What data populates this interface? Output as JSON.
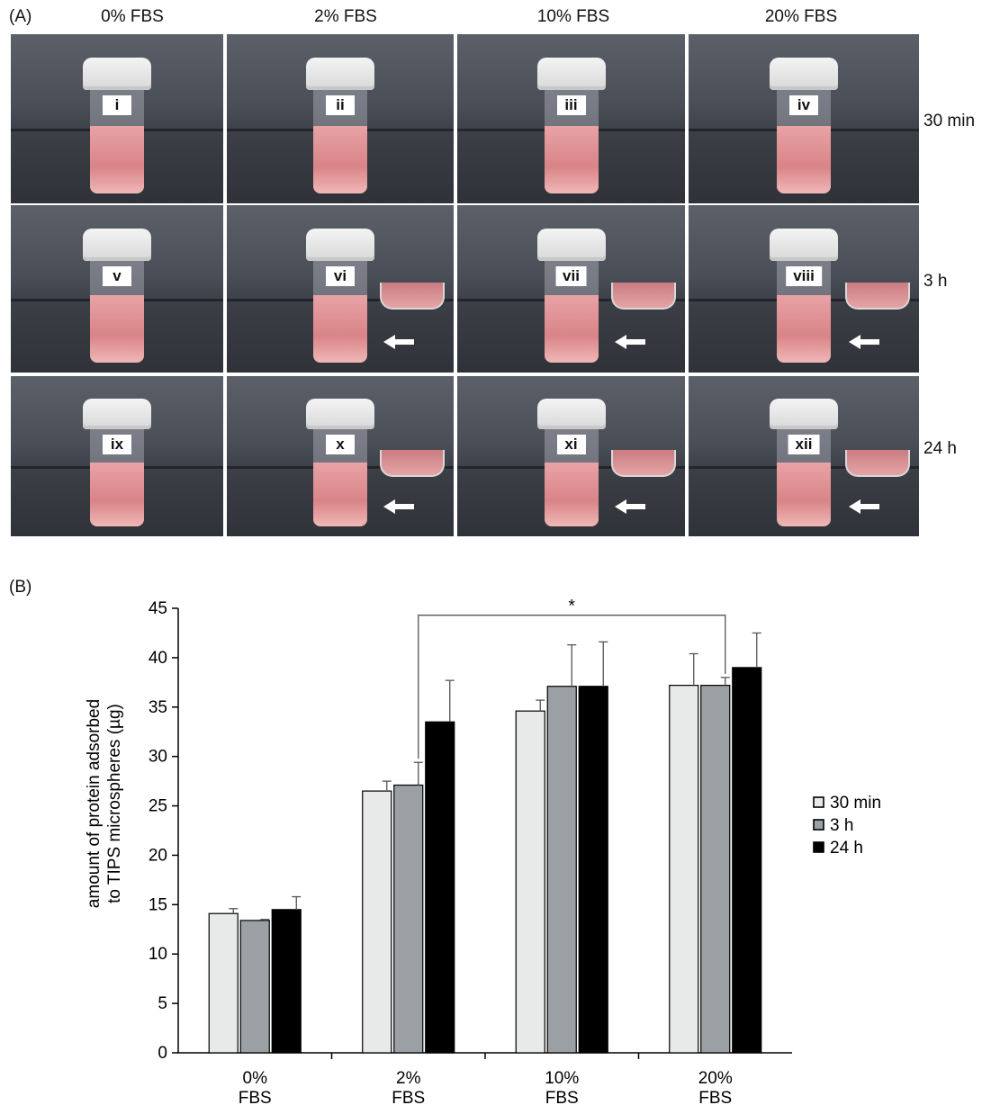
{
  "panel_a": {
    "label": "(A)",
    "columns": [
      "0% FBS",
      "2% FBS",
      "10% FBS",
      "20% FBS"
    ],
    "rows": [
      {
        "label": "30 min",
        "vials": [
          "i",
          "ii",
          "iii",
          "iv"
        ],
        "inset": [
          false,
          false,
          false,
          false
        ]
      },
      {
        "label": "3 h",
        "vials": [
          "v",
          "vi",
          "vii",
          "viii"
        ],
        "inset": [
          false,
          true,
          true,
          true
        ]
      },
      {
        "label": "24 h",
        "vials": [
          "ix",
          "x",
          "xi",
          "xii"
        ],
        "inset": [
          false,
          true,
          true,
          true
        ]
      }
    ]
  },
  "panel_b": {
    "label": "(B)",
    "significance": "*"
  },
  "chart_data": {
    "type": "bar",
    "title": "",
    "ylabel_line1": "amount of protein adsorbed",
    "ylabel_line2": "to TIPS microspheres (µg)",
    "xlabel": "",
    "ylim": [
      0,
      45
    ],
    "yticks": [
      0,
      5,
      10,
      15,
      20,
      25,
      30,
      35,
      40,
      45
    ],
    "categories": [
      {
        "line1": "0%",
        "line2": "FBS"
      },
      {
        "line1": "2%",
        "line2": "FBS"
      },
      {
        "line1": "10%",
        "line2": "FBS"
      },
      {
        "line1": "20%",
        "line2": "FBS"
      }
    ],
    "series": [
      {
        "name": "30 min",
        "color": "#e8eaea",
        "values": [
          14.1,
          26.5,
          34.6,
          37.2
        ],
        "errors": [
          0.5,
          1.0,
          1.1,
          3.2
        ]
      },
      {
        "name": "3 h",
        "color": "#9aa0a3",
        "values": [
          13.4,
          27.1,
          37.1,
          37.2
        ],
        "errors": [
          0.1,
          2.3,
          4.2,
          0.8
        ]
      },
      {
        "name": "24 h",
        "color": "#000000",
        "values": [
          14.5,
          33.5,
          37.1,
          39.0
        ],
        "errors": [
          1.3,
          4.2,
          4.5,
          3.5
        ]
      }
    ],
    "legend_position": "right",
    "grid": false
  }
}
